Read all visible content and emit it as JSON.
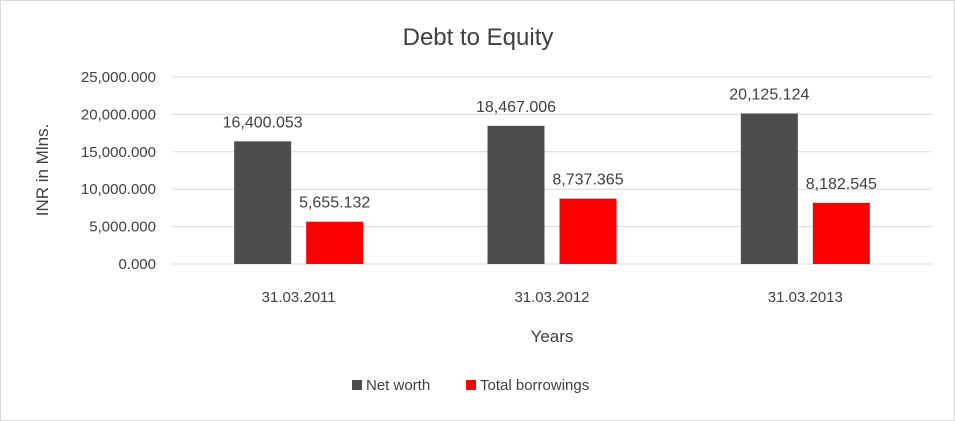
{
  "chart_data": {
    "type": "bar",
    "title": "Debt to Equity",
    "xlabel": "Years",
    "ylabel": "INR in Mlns.",
    "categories": [
      "31.03.2011",
      "31.03.2012",
      "31.03.2013"
    ],
    "series": [
      {
        "name": "Net worth",
        "color": "#4d4d4d",
        "values": [
          16400.053,
          18467.006,
          20125.124
        ],
        "labels": [
          "16,400.053",
          "18,467.006",
          "20,125.124"
        ]
      },
      {
        "name": "Total borrowings",
        "color": "#ff0000",
        "values": [
          5655.132,
          8737.365,
          8182.545
        ],
        "labels": [
          "5,655.132",
          "8,737.365",
          "8,182.545"
        ]
      }
    ],
    "ylim": [
      0,
      25000
    ],
    "yticks": [
      0,
      5000,
      10000,
      15000,
      20000,
      25000
    ],
    "ytick_labels": [
      "0.000",
      "5,000.000",
      "10,000.000",
      "15,000.000",
      "20,000.000",
      "25,000.000"
    ],
    "grid": true,
    "legend_position": "bottom"
  }
}
